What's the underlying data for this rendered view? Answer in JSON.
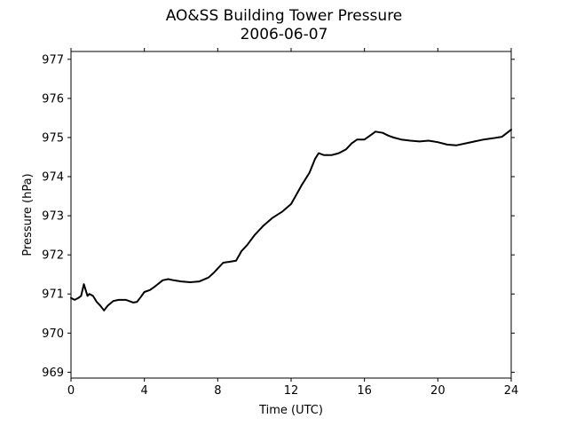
{
  "chart_data": {
    "type": "line",
    "title": "AO&SS Building Tower Pressure",
    "subtitle": "2006-06-07",
    "xlabel": "Time (UTC)",
    "ylabel": "Pressure (hPa)",
    "xlim": [
      0,
      24
    ],
    "ylim": [
      968.85,
      977.2
    ],
    "xticks": [
      0,
      4,
      8,
      12,
      16,
      20,
      24
    ],
    "yticks": [
      969,
      970,
      971,
      972,
      973,
      974,
      975,
      976,
      977
    ],
    "grid": false,
    "legend": "none",
    "series": [
      {
        "color": "#000000",
        "x": [
          0,
          0.2,
          0.4,
          0.55,
          0.7,
          0.8,
          0.9,
          1.0,
          1.2,
          1.4,
          1.6,
          1.8,
          2.0,
          2.3,
          2.6,
          3.0,
          3.4,
          3.6,
          3.8,
          4.0,
          4.3,
          4.6,
          5.0,
          5.3,
          5.6,
          6.0,
          6.5,
          7.0,
          7.5,
          7.8,
          8.0,
          8.3,
          8.6,
          9.0,
          9.3,
          9.6,
          10.0,
          10.5,
          11.0,
          11.5,
          12.0,
          12.3,
          12.6,
          13.0,
          13.3,
          13.5,
          13.8,
          14.2,
          14.6,
          15.0,
          15.3,
          15.6,
          16.0,
          16.3,
          16.6,
          17.0,
          17.3,
          17.6,
          18.0,
          18.5,
          19.0,
          19.5,
          20.0,
          20.5,
          21.0,
          21.5,
          22.0,
          22.5,
          23.0,
          23.5,
          24.0
        ],
        "y": [
          970.9,
          970.85,
          970.9,
          970.95,
          971.25,
          971.1,
          970.95,
          971.0,
          970.95,
          970.8,
          970.7,
          970.58,
          970.7,
          970.82,
          970.85,
          970.85,
          970.78,
          970.8,
          970.92,
          971.05,
          971.1,
          971.2,
          971.35,
          971.38,
          971.35,
          971.32,
          971.3,
          971.32,
          971.42,
          971.55,
          971.65,
          971.8,
          971.82,
          971.85,
          972.1,
          972.25,
          972.5,
          972.75,
          972.95,
          973.1,
          973.3,
          973.55,
          973.8,
          974.1,
          974.45,
          974.6,
          974.55,
          974.55,
          974.6,
          974.7,
          974.85,
          974.95,
          974.95,
          975.05,
          975.15,
          975.12,
          975.05,
          975.0,
          974.95,
          974.92,
          974.9,
          974.92,
          974.88,
          974.82,
          974.8,
          974.85,
          974.9,
          974.95,
          974.98,
          975.02,
          975.2
        ]
      }
    ]
  }
}
